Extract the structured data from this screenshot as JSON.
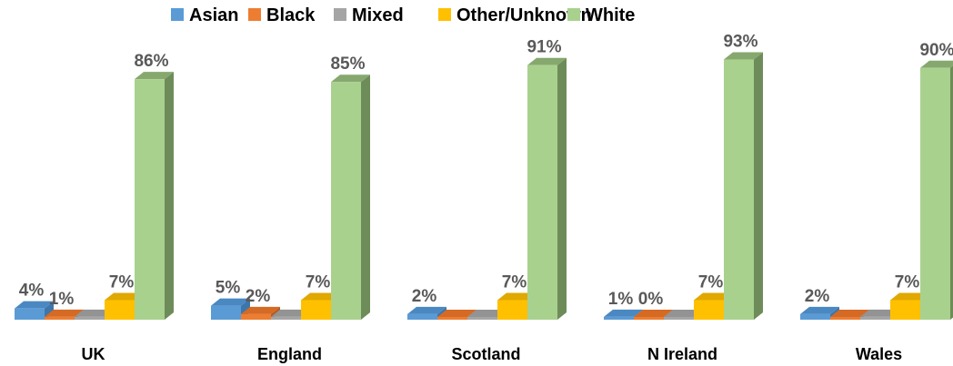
{
  "chart_data": {
    "type": "bar",
    "categories": [
      "UK",
      "England",
      "Scotland",
      "N Ireland",
      "Wales"
    ],
    "series": [
      {
        "name": "Asian",
        "values": [
          4,
          5,
          2,
          1,
          2
        ],
        "labels": [
          "4%",
          "5%",
          "2%",
          "1%",
          "2%"
        ]
      },
      {
        "name": "Black",
        "values": [
          1,
          2,
          0,
          0,
          0
        ],
        "labels": [
          "1%",
          "2%",
          "",
          "0%",
          ""
        ]
      },
      {
        "name": "Mixed",
        "values": [
          1,
          1,
          0,
          0,
          1
        ],
        "labels": [
          "",
          "",
          "",
          "",
          ""
        ]
      },
      {
        "name": "Other/Unknown",
        "values": [
          7,
          7,
          7,
          7,
          7
        ],
        "labels": [
          "7%",
          "7%",
          "7%",
          "7%",
          "7%"
        ]
      },
      {
        "name": "White",
        "values": [
          86,
          85,
          91,
          93,
          90
        ],
        "labels": [
          "86%",
          "85%",
          "91%",
          "93%",
          "90%"
        ]
      }
    ],
    "title": "",
    "xlabel": "",
    "ylabel": "",
    "ylim": [
      0,
      100
    ],
    "grid": false,
    "legend": "top",
    "colors": {
      "Asian": {
        "front": "#5B9BD5",
        "top": "#4A88C2",
        "side": "#3E76AB"
      },
      "Black": {
        "front": "#ED7D31",
        "top": "#D46A24",
        "side": "#B85A1C"
      },
      "Mixed": {
        "front": "#A5A5A5",
        "top": "#939393",
        "side": "#7F7F7F"
      },
      "Other/Unknown": {
        "front": "#FFC000",
        "top": "#E0A800",
        "side": "#C79500"
      },
      "White": {
        "front": "#A9D18E",
        "top": "#86A86E",
        "side": "#6E8C5A"
      }
    }
  }
}
